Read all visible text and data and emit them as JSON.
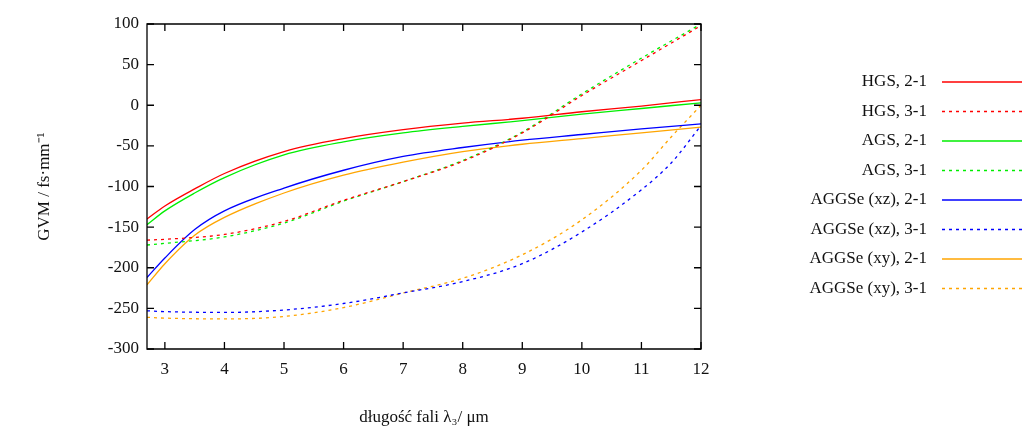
{
  "chart_data": {
    "type": "line",
    "xlabel": "długość fali λ₃/ μm",
    "ylabel": "GVM / fs·mm⁻¹",
    "xlim": [
      2.7,
      12
    ],
    "xticks": [
      3,
      4,
      5,
      6,
      7,
      8,
      9,
      10,
      11,
      12
    ],
    "ylim": [
      -300,
      100
    ],
    "yticks": [
      -300,
      -250,
      -200,
      -150,
      -100,
      -50,
      0,
      50,
      100
    ],
    "grid": false,
    "legend": "right",
    "marker": "none",
    "series": [
      {
        "name": "HGS, 2-1",
        "color": "#ff0000",
        "line_style": "solid",
        "x": [
          2.7,
          3,
          3.5,
          4,
          5,
          6,
          7,
          8,
          9,
          10,
          11,
          12
        ],
        "values": [
          -140,
          -124,
          -103,
          -84,
          -57,
          -41,
          -30,
          -22,
          -16,
          -8,
          -1,
          7
        ]
      },
      {
        "name": "HGS, 3-1",
        "color": "#ff0000",
        "line_style": "dotted",
        "x": [
          2.7,
          3,
          4,
          5,
          6,
          7,
          8,
          9,
          10,
          11,
          12
        ],
        "values": [
          -166,
          -165,
          -159,
          -143,
          -117,
          -94,
          -69,
          -34,
          12,
          55,
          98
        ]
      },
      {
        "name": "AGS, 2-1",
        "color": "#00ee00",
        "line_style": "solid",
        "x": [
          2.7,
          3,
          3.5,
          4,
          5,
          6,
          7,
          8,
          9,
          10,
          11,
          12
        ],
        "values": [
          -147,
          -130,
          -108,
          -89,
          -61,
          -45,
          -34,
          -26,
          -19,
          -11,
          -4,
          3
        ]
      },
      {
        "name": "AGS, 3-1",
        "color": "#00ee00",
        "line_style": "dotted",
        "x": [
          2.7,
          3,
          4,
          5,
          6,
          7,
          8,
          9,
          10,
          11,
          12
        ],
        "values": [
          -172,
          -170,
          -162,
          -145,
          -118,
          -94,
          -68,
          -33,
          14,
          58,
          100
        ]
      },
      {
        "name": "AGGSe (xz), 2-1",
        "color": "#0000ff",
        "line_style": "solid",
        "x": [
          2.7,
          3,
          3.5,
          4,
          5,
          6,
          7,
          8,
          9,
          10,
          11,
          12
        ],
        "values": [
          -212,
          -188,
          -153,
          -130,
          -102,
          -80,
          -63,
          -52,
          -43,
          -36,
          -29,
          -23
        ]
      },
      {
        "name": "AGGSe (xz), 3-1",
        "color": "#0000ff",
        "line_style": "dotted",
        "x": [
          2.7,
          3,
          4,
          5,
          6,
          7,
          8,
          9,
          10,
          11,
          11.5,
          12
        ],
        "values": [
          -253,
          -254,
          -255,
          -252,
          -244,
          -231,
          -217,
          -195,
          -156,
          -104,
          -71,
          -25
        ]
      },
      {
        "name": "AGGSe (xy), 2-1",
        "color": "#ffa500",
        "line_style": "solid",
        "x": [
          2.7,
          3,
          3.5,
          4,
          5,
          6,
          7,
          8,
          9,
          10,
          11,
          12
        ],
        "values": [
          -221,
          -195,
          -160,
          -138,
          -108,
          -86,
          -70,
          -57,
          -48,
          -41,
          -34,
          -27
        ]
      },
      {
        "name": "AGGSe (xy), 3-1",
        "color": "#ffa500",
        "line_style": "dotted",
        "x": [
          2.7,
          3,
          4,
          5,
          6,
          7,
          8,
          9,
          10,
          11,
          11.5,
          12
        ],
        "values": [
          -261,
          -262,
          -263,
          -260,
          -249,
          -231,
          -213,
          -184,
          -141,
          -80,
          -39,
          0
        ]
      }
    ]
  }
}
